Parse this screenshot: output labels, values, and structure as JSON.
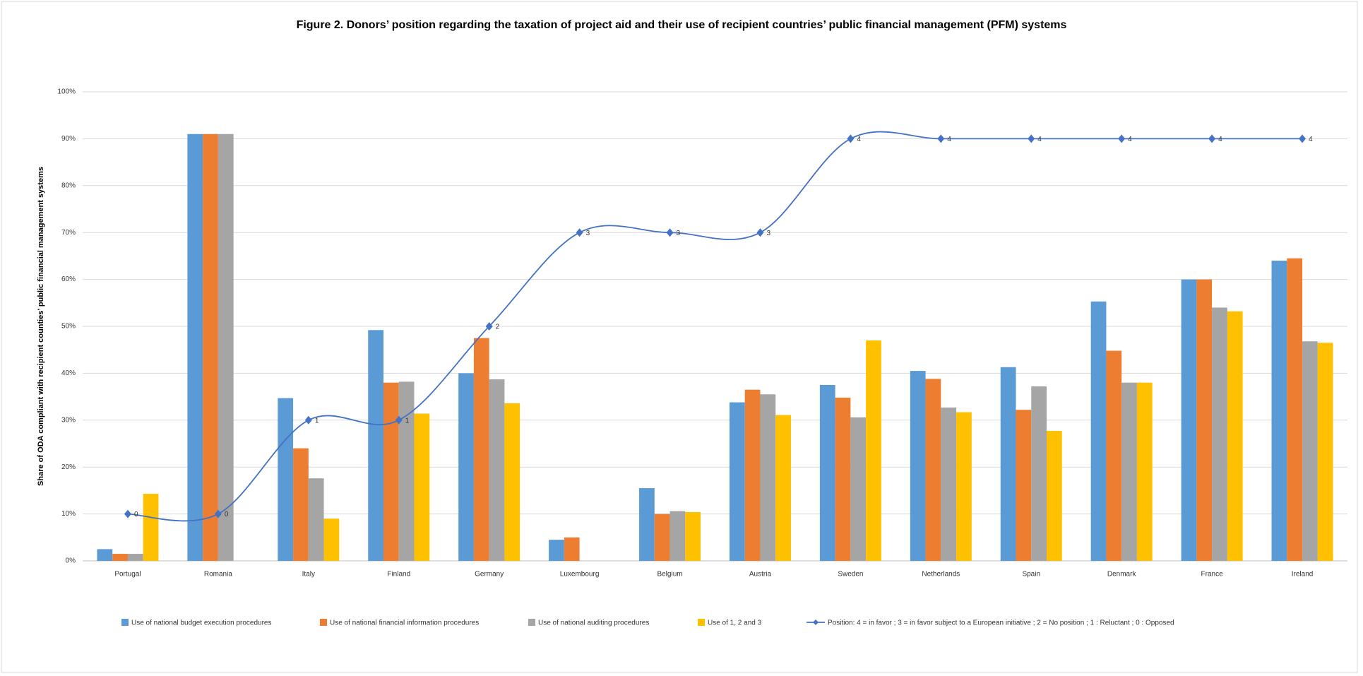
{
  "chart_data": {
    "type": "bar",
    "title": "Figure 2. Donors’ position regarding the taxation of project aid and their use of recipient countries’ public financial management (PFM) systems",
    "y_label": "Share of ODA compliant with recipient counties’ public financial management systems",
    "categories": [
      "Portugal",
      "Romania",
      "Italy",
      "Finland",
      "Germany",
      "Luxembourg",
      "Belgium",
      "Austria",
      "Sweden",
      "Netherlands",
      "Spain",
      "Denmark",
      "France",
      "Ireland"
    ],
    "series": [
      {
        "name": "Use of national budget execution procedures",
        "color": "#5b9bd5",
        "values": [
          2.5,
          91,
          34.7,
          49.2,
          40,
          4.5,
          15.5,
          33.8,
          37.5,
          40.5,
          41.3,
          55.3,
          60,
          64
        ]
      },
      {
        "name": "Use of national financial information procedures",
        "color": "#ed7d31",
        "values": [
          1.5,
          91,
          24,
          38,
          47.5,
          5,
          10,
          36.5,
          34.8,
          38.8,
          32.2,
          44.8,
          60,
          64.5
        ]
      },
      {
        "name": "Use of national auditing procedures",
        "color": "#a5a5a5",
        "values": [
          1.5,
          91,
          17.6,
          38.2,
          38.7,
          null,
          10.6,
          35.5,
          30.6,
          32.7,
          37.2,
          38,
          54,
          46.8
        ]
      },
      {
        "name": "Use of 1, 2 and 3",
        "color": "#ffc000",
        "values": [
          14.3,
          null,
          9,
          31.4,
          33.6,
          null,
          10.4,
          31.1,
          47,
          31.7,
          27.7,
          38,
          53.2,
          46.5
        ]
      },
      {
        "name": "Position: 4 = in favor ; 3 = in favor subject to a European initiative ; 2 = No position ; 1 : Reluctant ; 0 : Opposed",
        "color": "#4472c4",
        "type": "line",
        "axis": "y2",
        "values": [
          0,
          0,
          1,
          1,
          2,
          3,
          3,
          3,
          4,
          4,
          4,
          4,
          4,
          4
        ]
      }
    ],
    "ylim": [
      0,
      100
    ],
    "yticks": [
      {
        "value": 0,
        "label": "0%"
      },
      {
        "value": 10,
        "label": "10%"
      },
      {
        "value": 20,
        "label": "20%"
      },
      {
        "value": 30,
        "label": "30%"
      },
      {
        "value": 40,
        "label": "40%"
      },
      {
        "value": 50,
        "label": "50%"
      },
      {
        "value": 60,
        "label": "60%"
      },
      {
        "value": 70,
        "label": "70%"
      },
      {
        "value": 80,
        "label": "80%"
      },
      {
        "value": 90,
        "label": "90%"
      },
      {
        "value": 100,
        "label": "100%"
      }
    ],
    "y2lim": [
      -0.5,
      4.5
    ],
    "grid": true,
    "legend": "bottom"
  }
}
